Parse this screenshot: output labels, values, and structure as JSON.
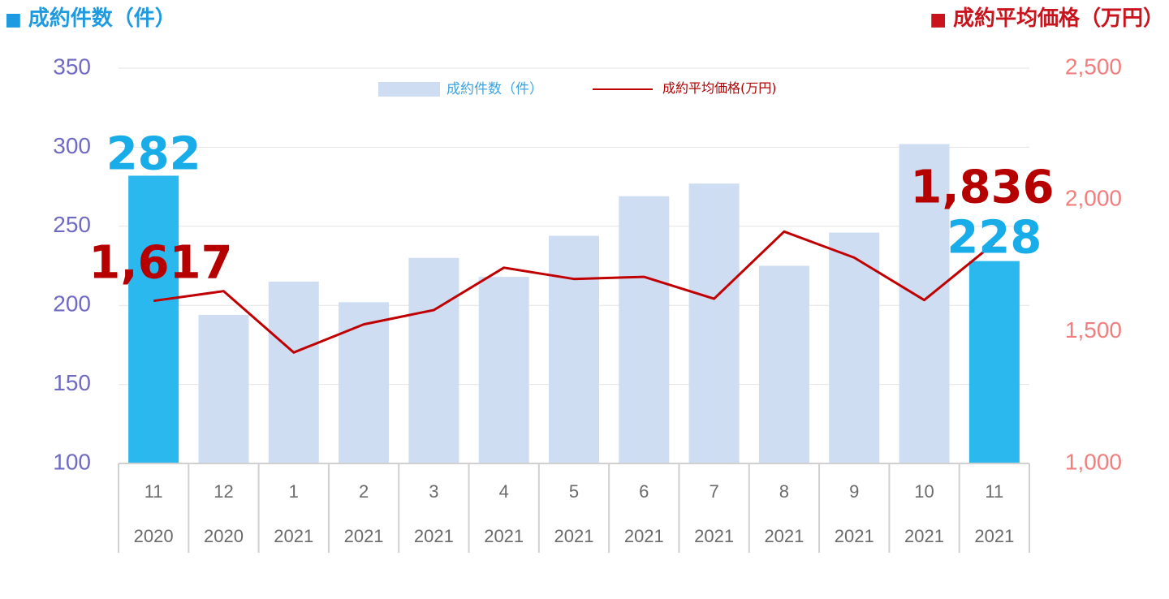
{
  "header": {
    "left_title": "成約件数（件）",
    "right_title": "成約平均価格（万円）",
    "left_marker": "■",
    "right_marker": "■"
  },
  "legend": {
    "bar_label": "成約件数（件）",
    "line_label": "成約平均価格(万円)"
  },
  "colors": {
    "bar_default": "#CFDDF2",
    "bar_highlight": "#2BB8EE",
    "line": "#C00000",
    "left_axis": "#6F6BC2",
    "right_axis": "#F07E7E",
    "x_labels": "#6B6B6B",
    "grid": "#E3E3E3",
    "header_left": "#1E9BE0",
    "header_right": "#C9141E",
    "callout_bar": "#18ACE8",
    "callout_line": "#B60000"
  },
  "chart_data": {
    "type": "bar+line",
    "categories": [
      "11",
      "12",
      "1",
      "2",
      "3",
      "4",
      "5",
      "6",
      "7",
      "8",
      "9",
      "10",
      "11"
    ],
    "category_years": [
      "2020",
      "2020",
      "2021",
      "2021",
      "2021",
      "2021",
      "2021",
      "2021",
      "2021",
      "2021",
      "2021",
      "2021",
      "2021"
    ],
    "series": [
      {
        "name": "成約件数（件）",
        "type": "bar",
        "axis": "left",
        "values": [
          282,
          194,
          215,
          202,
          230,
          218,
          244,
          269,
          277,
          225,
          246,
          302,
          228
        ],
        "highlight_indices": [
          0,
          12
        ]
      },
      {
        "name": "成約平均価格(万円)",
        "type": "line",
        "axis": "right",
        "values": [
          1617,
          1654,
          1421,
          1528,
          1582,
          1743,
          1700,
          1708,
          1625,
          1880,
          1781,
          1620,
          1836
        ]
      }
    ],
    "left_axis": {
      "min": 100,
      "max": 350,
      "ticks": [
        "100",
        "150",
        "200",
        "250",
        "300",
        "350"
      ]
    },
    "right_axis": {
      "min": 1000,
      "max": 2500,
      "ticks": [
        "1,000",
        "1,500",
        "2,000",
        "2,500"
      ]
    },
    "grid": true,
    "legend_position": "top-center",
    "callouts": {
      "bar_first": "282",
      "bar_last": "228",
      "line_first": "1,617",
      "line_last": "1,836"
    }
  }
}
